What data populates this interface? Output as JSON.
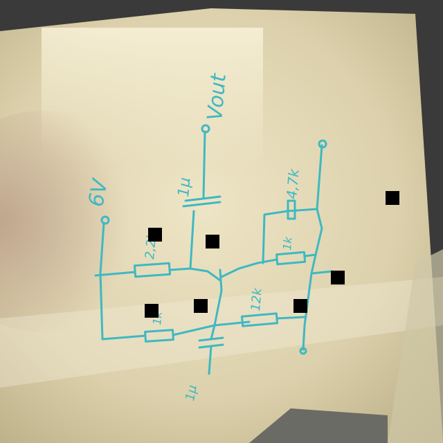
{
  "labels": {
    "supply": "6V",
    "output": "Vout",
    "cap_top": "1µ",
    "r_top": "4,7k",
    "r_left": "2,2k",
    "r_mid": "1k",
    "r_right": "12k",
    "r_bottom": "1k",
    "cap_bottom": "1µ"
  }
}
